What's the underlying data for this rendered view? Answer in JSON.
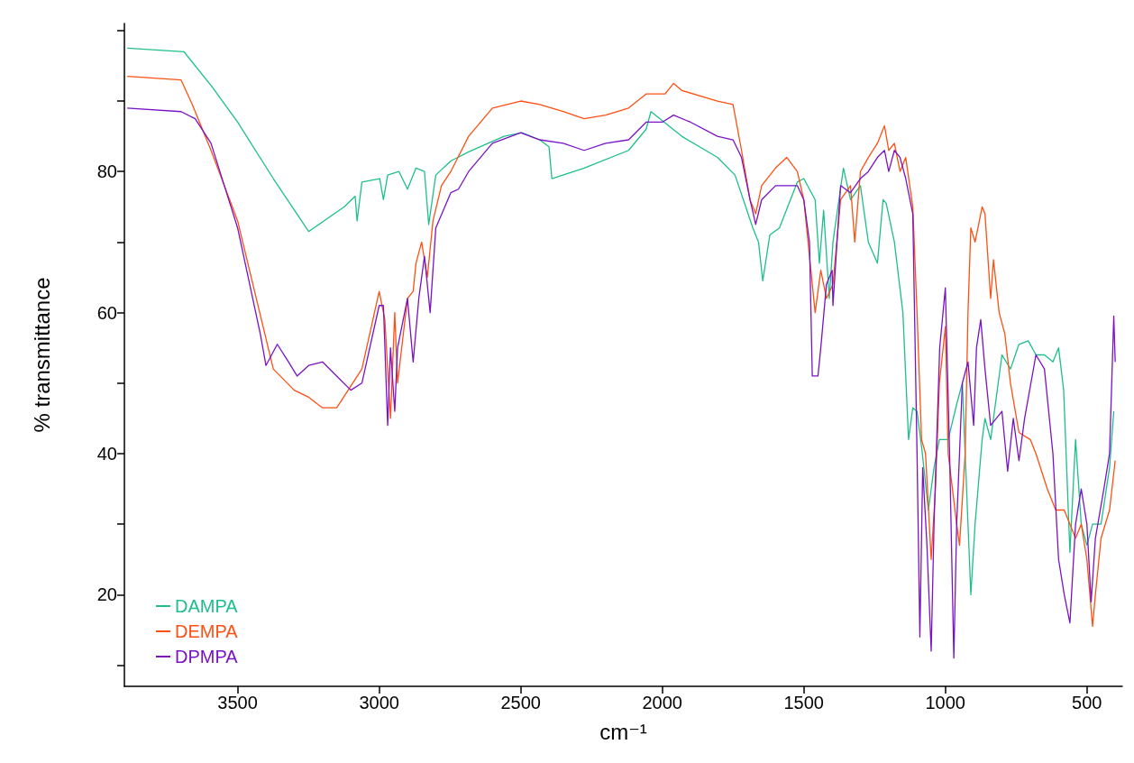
{
  "chart_data": {
    "type": "line",
    "xlabel": "cm⁻¹",
    "ylabel": "% transmittance",
    "xlim": [
      3900,
      375
    ],
    "xticks": [
      3500,
      3000,
      2500,
      2000,
      1500,
      1000,
      500
    ],
    "ylim": [
      7,
      101
    ],
    "yticks": [
      {
        "value": 10,
        "label": null
      },
      20,
      {
        "value": 30,
        "label": null
      },
      40,
      {
        "value": 50,
        "label": null
      },
      60,
      {
        "value": 70,
        "label": null
      },
      80,
      {
        "value": 90,
        "label": null
      },
      {
        "value": 100,
        "label": null
      }
    ],
    "grid": false,
    "legend": "bottom left",
    "marker": "none",
    "line_style": "solid",
    "series": [
      {
        "name": "DAMPA",
        "color": "#1dbf8c",
        "x": [
          3890,
          3690,
          3590,
          3500,
          3374,
          3249,
          3123,
          3085,
          3078,
          3061,
          2998,
          2985,
          2970,
          2930,
          2900,
          2870,
          2840,
          2825,
          2800,
          2747,
          2684,
          2559,
          2496,
          2433,
          2400,
          2390,
          2276,
          2119,
          2057,
          2040,
          1931,
          1805,
          1743,
          1680,
          1660,
          1645,
          1620,
          1586,
          1523,
          1500,
          1460,
          1445,
          1430,
          1410,
          1397,
          1360,
          1335,
          1300,
          1272,
          1240,
          1220,
          1209,
          1180,
          1150,
          1130,
          1115,
          1100,
          1084,
          1060,
          1040,
          1021,
          990,
          960,
          940,
          910,
          895,
          870,
          860,
          840,
          800,
          770,
          740,
          707,
          680,
          650,
          620,
          600,
          582,
          560,
          540,
          520,
          500,
          480,
          450,
          420,
          405
        ],
        "values": [
          97.5,
          97,
          92,
          87,
          79,
          71.5,
          75,
          76.5,
          73,
          78.5,
          79,
          76,
          79.5,
          80,
          77.5,
          80.5,
          80,
          72.5,
          79.5,
          81.5,
          82.8,
          85,
          85.5,
          84.5,
          83.5,
          79,
          80.5,
          83,
          86,
          88.5,
          85,
          82,
          79.5,
          72,
          70,
          64.5,
          71,
          72,
          78.5,
          79,
          76,
          67,
          74.5,
          62,
          70,
          80.5,
          76,
          78,
          70,
          67,
          76,
          75.5,
          70,
          60,
          42,
          46.5,
          46,
          41,
          32,
          38,
          42,
          42,
          47,
          50,
          20,
          30,
          42,
          45,
          42,
          54,
          52,
          55.5,
          56,
          54,
          54,
          53,
          55,
          49,
          26,
          42,
          30,
          27,
          30,
          30,
          38,
          46
        ]
      },
      {
        "name": "DEMPA",
        "color": "#ff4f12",
        "x": [
          3890,
          3700,
          3660,
          3594,
          3500,
          3374,
          3300,
          3249,
          3200,
          3150,
          3061,
          3000,
          2980,
          2960,
          2945,
          2935,
          2900,
          2880,
          2870,
          2850,
          2830,
          2810,
          2780,
          2747,
          2684,
          2600,
          2500,
          2433,
          2350,
          2276,
          2200,
          2119,
          2057,
          1990,
          1960,
          1931,
          1805,
          1750,
          1720,
          1690,
          1670,
          1649,
          1600,
          1560,
          1523,
          1500,
          1480,
          1460,
          1440,
          1420,
          1397,
          1370,
          1335,
          1320,
          1300,
          1272,
          1240,
          1215,
          1200,
          1180,
          1160,
          1140,
          1115,
          1100,
          1084,
          1070,
          1050,
          1035,
          1021,
          1000,
          990,
          960,
          950,
          930,
          920,
          910,
          895,
          870,
          860,
          840,
          830,
          810,
          790,
          770,
          740,
          700,
          680,
          640,
          610,
          580,
          560,
          540,
          520,
          500,
          480,
          470,
          450,
          420,
          400
        ],
        "values": [
          93.5,
          93,
          89.5,
          83,
          73,
          52,
          49,
          48,
          46.5,
          46.5,
          52,
          63,
          59,
          45,
          60,
          50,
          62,
          63,
          67,
          70,
          65,
          73,
          78,
          80,
          85,
          89,
          90,
          89.5,
          88.5,
          87.5,
          88,
          89,
          91,
          91,
          92.5,
          91.5,
          90,
          89.5,
          83,
          76,
          74,
          78,
          80.5,
          82,
          80,
          76,
          68,
          60,
          66,
          62,
          64,
          76,
          78,
          70,
          80,
          82,
          84,
          86.5,
          83,
          84,
          80,
          82,
          75,
          60,
          42,
          40,
          25,
          35,
          50,
          58,
          40,
          30,
          27,
          40,
          60,
          72,
          70,
          75,
          74,
          62,
          67.5,
          60,
          57,
          50,
          43,
          42,
          40,
          35,
          32,
          32,
          30,
          28,
          30,
          25,
          15.5,
          20,
          28,
          32,
          39
        ]
      },
      {
        "name": "DPMPA",
        "color": "#7a12c6",
        "x": [
          3890,
          3700,
          3650,
          3594,
          3500,
          3420,
          3400,
          3360,
          3320,
          3290,
          3249,
          3200,
          3150,
          3100,
          3061,
          3000,
          2985,
          2970,
          2960,
          2945,
          2935,
          2900,
          2880,
          2860,
          2840,
          2820,
          2800,
          2747,
          2720,
          2684,
          2600,
          2500,
          2433,
          2350,
          2276,
          2200,
          2119,
          2057,
          2000,
          1960,
          1900,
          1805,
          1750,
          1720,
          1690,
          1670,
          1649,
          1600,
          1523,
          1500,
          1480,
          1470,
          1450,
          1440,
          1420,
          1400,
          1397,
          1370,
          1335,
          1300,
          1272,
          1240,
          1215,
          1200,
          1180,
          1160,
          1140,
          1115,
          1100,
          1090,
          1080,
          1065,
          1050,
          1040,
          1020,
          1000,
          985,
          970,
          960,
          940,
          920,
          900,
          890,
          875,
          860,
          840,
          800,
          780,
          760,
          740,
          720,
          680,
          650,
          620,
          600,
          580,
          560,
          540,
          520,
          500,
          485,
          470,
          440,
          420,
          405,
          400
        ],
        "values": [
          89,
          88.5,
          87.5,
          84,
          72,
          57,
          52.5,
          55.5,
          53,
          51,
          52.5,
          53,
          51,
          49,
          50,
          61,
          61,
          44,
          55,
          46,
          55,
          62,
          53,
          62,
          68,
          60,
          72,
          77,
          77.5,
          80,
          84,
          85.5,
          84.5,
          84,
          83,
          84,
          84.5,
          87,
          87,
          88,
          87,
          85,
          84.5,
          82,
          76,
          72.5,
          76,
          78,
          78,
          76,
          70,
          51,
          51,
          55,
          64,
          66,
          61,
          78,
          77,
          79,
          80,
          82,
          83,
          80,
          83,
          82,
          79,
          74,
          40,
          14,
          38,
          27,
          12,
          30,
          55,
          63.5,
          40,
          11,
          30,
          50,
          53,
          44,
          55,
          59,
          52,
          44,
          46,
          37.5,
          45,
          39,
          45,
          54,
          52,
          40,
          25,
          20,
          16,
          30,
          35,
          30,
          19,
          28,
          35,
          40,
          59.5,
          53
        ]
      }
    ]
  }
}
